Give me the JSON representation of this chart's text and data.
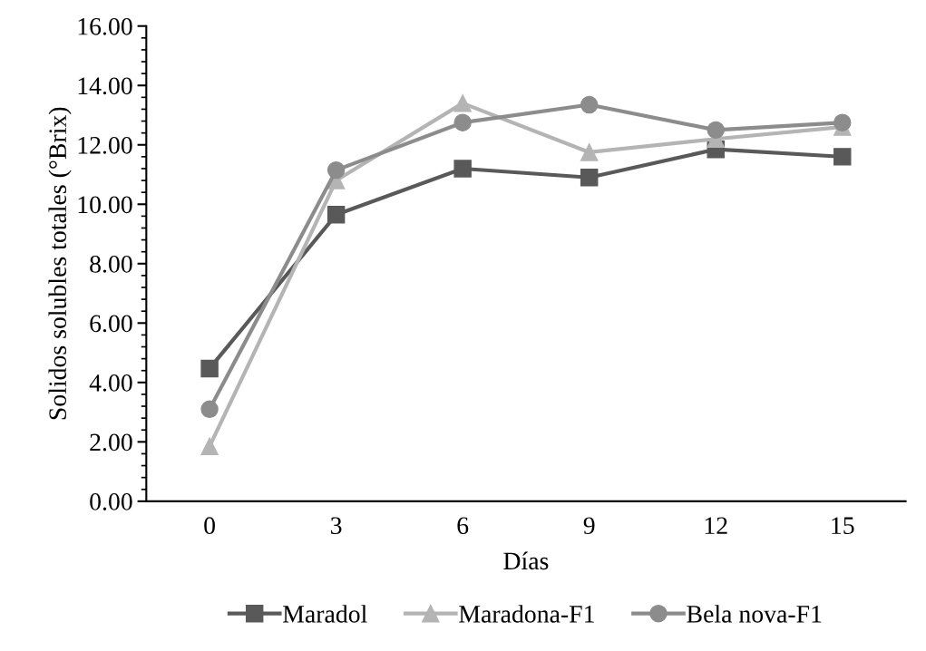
{
  "chart_data": {
    "type": "line",
    "xlabel": "Días",
    "ylabel": "Solidos solubles totales (°Brix)",
    "categories": [
      "0",
      "3",
      "6",
      "9",
      "12",
      "15"
    ],
    "series": [
      {
        "name": "Maradol",
        "color": "#595959",
        "marker": "square",
        "values": [
          4.47,
          9.65,
          11.2,
          10.9,
          11.85,
          11.6
        ]
      },
      {
        "name": "Maradona-F1",
        "color": "#b4b4b4",
        "marker": "triangle",
        "values": [
          1.85,
          10.8,
          13.4,
          11.75,
          12.2,
          12.6
        ]
      },
      {
        "name": "Bela nova-F1",
        "color": "#8c8c8c",
        "marker": "circle",
        "values": [
          3.1,
          11.15,
          12.75,
          13.35,
          12.5,
          12.75
        ]
      }
    ],
    "ylim": [
      0,
      16
    ],
    "yticks": [
      {
        "value": 0,
        "label": "0.00"
      },
      {
        "value": 2,
        "label": "2.00"
      },
      {
        "value": 4,
        "label": "4.00"
      },
      {
        "value": 6,
        "label": "6.00"
      },
      {
        "value": 8,
        "label": "8.00"
      },
      {
        "value": 10,
        "label": "10.00"
      },
      {
        "value": 12,
        "label": "12.00"
      },
      {
        "value": 14,
        "label": "14.00"
      },
      {
        "value": 16,
        "label": "16.00"
      }
    ],
    "grid": false,
    "legend": "bottom",
    "line_style": "solid"
  }
}
